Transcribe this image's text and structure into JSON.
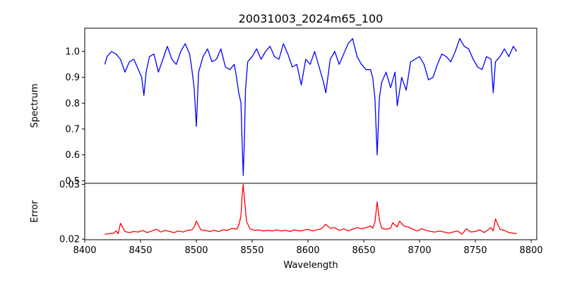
{
  "figure": {
    "title": "20031003_2024m65_100",
    "xlabel": "Wavelength"
  },
  "chart_data": [
    {
      "type": "line",
      "panel": "top",
      "title": "20031003_2024m65_100",
      "xlabel": "",
      "ylabel": "Spectrum",
      "xlim": [
        8400,
        8805
      ],
      "ylim": [
        0.49,
        1.09
      ],
      "xticks": [
        8400,
        8450,
        8500,
        8550,
        8600,
        8650,
        8700,
        8750,
        8800
      ],
      "yticks": [
        0.5,
        0.6,
        0.7,
        0.8,
        0.9,
        1.0
      ],
      "ytick_labels": [
        "0.5",
        "0.6",
        "0.7",
        "0.8",
        "0.9",
        "1.0"
      ],
      "color": "#0000ff",
      "grid": false,
      "series": [
        {
          "x": [
            8418,
            8420,
            8424,
            8428,
            8432,
            8436,
            8440,
            8444,
            8448,
            8451,
            8453,
            8455,
            8458,
            8462,
            8466,
            8470,
            8474,
            8478,
            8482,
            8486,
            8490,
            8494,
            8496,
            8498,
            8500,
            8502,
            8506,
            8510,
            8514,
            8518,
            8522,
            8526,
            8530,
            8534,
            8536,
            8538,
            8540,
            8541,
            8542,
            8543,
            8544,
            8546,
            8550,
            8554,
            8558,
            8562,
            8566,
            8570,
            8574,
            8578,
            8582,
            8586,
            8590,
            8594,
            8598,
            8602,
            8606,
            8610,
            8614,
            8616,
            8620,
            8624,
            8628,
            8632,
            8636,
            8640,
            8644,
            8648,
            8652,
            8656,
            8658,
            8660,
            8662,
            8664,
            8666,
            8670,
            8674,
            8678,
            8680,
            8684,
            8688,
            8692,
            8696,
            8700,
            8704,
            8708,
            8712,
            8716,
            8720,
            8724,
            8728,
            8732,
            8736,
            8740,
            8744,
            8748,
            8752,
            8756,
            8760,
            8764,
            8766,
            8768,
            8772,
            8776,
            8780,
            8784,
            8787
          ],
          "y": [
            0.95,
            0.98,
            1.0,
            0.99,
            0.97,
            0.92,
            0.96,
            0.97,
            0.93,
            0.9,
            0.83,
            0.92,
            0.98,
            0.99,
            0.92,
            0.97,
            1.02,
            0.97,
            0.95,
            1.0,
            1.03,
            0.99,
            0.93,
            0.86,
            0.71,
            0.92,
            0.98,
            1.01,
            0.96,
            0.97,
            1.01,
            0.94,
            0.93,
            0.95,
            0.9,
            0.84,
            0.8,
            0.65,
            0.52,
            0.65,
            0.85,
            0.96,
            0.98,
            1.01,
            0.97,
            1.0,
            1.02,
            0.98,
            0.97,
            1.03,
            0.99,
            0.94,
            0.95,
            0.87,
            0.97,
            0.95,
            1.0,
            0.94,
            0.88,
            0.84,
            0.97,
            1.0,
            0.95,
            0.99,
            1.03,
            1.05,
            0.98,
            0.95,
            0.93,
            0.93,
            0.9,
            0.82,
            0.6,
            0.82,
            0.88,
            0.92,
            0.86,
            0.92,
            0.79,
            0.9,
            0.85,
            0.96,
            0.97,
            0.98,
            0.95,
            0.89,
            0.9,
            0.95,
            0.99,
            0.98,
            0.96,
            1.0,
            1.05,
            1.02,
            1.01,
            0.97,
            0.94,
            0.93,
            0.98,
            0.97,
            0.84,
            0.96,
            0.98,
            1.01,
            0.98,
            1.02,
            1.0
          ]
        }
      ]
    },
    {
      "type": "line",
      "panel": "bottom",
      "xlabel": "Wavelength",
      "ylabel": "Error",
      "xlim": [
        8400,
        8805
      ],
      "ylim": [
        0.0199,
        0.0302
      ],
      "xticks": [
        8400,
        8450,
        8500,
        8550,
        8600,
        8650,
        8700,
        8750,
        8800
      ],
      "yticks": [
        0.02,
        0.03
      ],
      "ytick_labels": [
        "0.02",
        "0.03"
      ],
      "color": "#ff0000",
      "grid": false,
      "series": [
        {
          "x": [
            8418,
            8422,
            8426,
            8428,
            8430,
            8432,
            8436,
            8440,
            8444,
            8448,
            8452,
            8456,
            8460,
            8464,
            8468,
            8472,
            8476,
            8480,
            8484,
            8488,
            8492,
            8496,
            8498,
            8500,
            8504,
            8508,
            8512,
            8516,
            8520,
            8524,
            8528,
            8532,
            8536,
            8538,
            8540,
            8541,
            8542,
            8543,
            8545,
            8548,
            8552,
            8556,
            8560,
            8564,
            8568,
            8572,
            8576,
            8580,
            8584,
            8588,
            8592,
            8596,
            8600,
            8604,
            8608,
            8612,
            8616,
            8620,
            8624,
            8628,
            8632,
            8636,
            8640,
            8644,
            8648,
            8652,
            8656,
            8658,
            8660,
            8662,
            8664,
            8666,
            8670,
            8674,
            8676,
            8680,
            8682,
            8686,
            8690,
            8694,
            8698,
            8702,
            8706,
            8710,
            8714,
            8718,
            8722,
            8726,
            8730,
            8734,
            8738,
            8742,
            8746,
            8750,
            8754,
            8758,
            8762,
            8764,
            8766,
            8768,
            8772,
            8776,
            8780,
            8784,
            8787
          ],
          "y": [
            0.0209,
            0.021,
            0.0211,
            0.0215,
            0.021,
            0.0229,
            0.0214,
            0.0212,
            0.0214,
            0.0213,
            0.0216,
            0.0212,
            0.0215,
            0.0218,
            0.0213,
            0.0216,
            0.0214,
            0.0212,
            0.0215,
            0.0213,
            0.0216,
            0.0217,
            0.0222,
            0.0233,
            0.0217,
            0.0216,
            0.0214,
            0.0216,
            0.0214,
            0.0217,
            0.0216,
            0.022,
            0.0218,
            0.0225,
            0.0243,
            0.028,
            0.03,
            0.0275,
            0.0232,
            0.0219,
            0.0216,
            0.0217,
            0.0215,
            0.0216,
            0.0215,
            0.0217,
            0.0215,
            0.0216,
            0.0214,
            0.0217,
            0.0215,
            0.0216,
            0.0218,
            0.0215,
            0.0217,
            0.0219,
            0.0227,
            0.022,
            0.0221,
            0.0216,
            0.0219,
            0.0215,
            0.0218,
            0.0221,
            0.0219,
            0.0221,
            0.0224,
            0.022,
            0.0231,
            0.0268,
            0.0235,
            0.022,
            0.0218,
            0.022,
            0.023,
            0.0222,
            0.0233,
            0.0224,
            0.0222,
            0.0218,
            0.0215,
            0.0219,
            0.0216,
            0.0214,
            0.0213,
            0.0215,
            0.0213,
            0.0211,
            0.0213,
            0.0215,
            0.0209,
            0.0219,
            0.0213,
            0.0214,
            0.0217,
            0.0212,
            0.0218,
            0.0221,
            0.0215,
            0.0237,
            0.0218,
            0.0216,
            0.0212,
            0.0211,
            0.021
          ]
        }
      ]
    }
  ]
}
